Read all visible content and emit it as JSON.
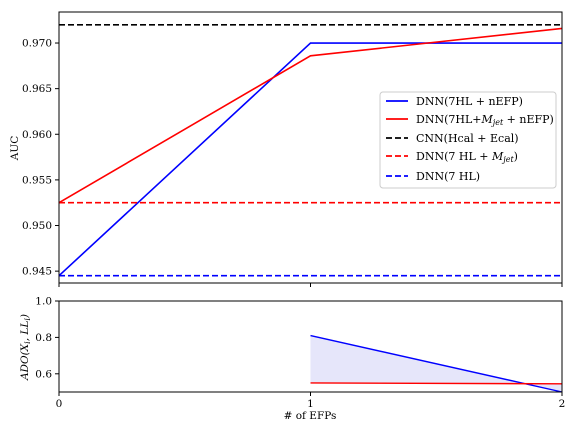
{
  "chart_data": [
    {
      "type": "line",
      "panel": "top",
      "xlabel": "",
      "ylabel": "AUC",
      "xlim": [
        0,
        2
      ],
      "ylim": [
        0.9437,
        0.9734
      ],
      "xticks": [
        0,
        1,
        2
      ],
      "yticks": [
        0.945,
        0.95,
        0.955,
        0.96,
        0.965,
        0.97
      ],
      "ytick_labels": [
        "0.945",
        "0.950",
        "0.955",
        "0.960",
        "0.965",
        "0.970"
      ],
      "grid": false,
      "legend_position": "center-right",
      "series": [
        {
          "name": "DNN(7HL + nEFP)",
          "color": "#0000ff",
          "dash": "solid",
          "x": [
            0,
            1,
            2
          ],
          "y": [
            0.9445,
            0.97,
            0.97
          ]
        },
        {
          "name": "DNN(7HL+",
          "name_math": "M",
          "name_sub": "jet",
          "name_suffix": " + nEFP)",
          "color": "#ff0000",
          "dash": "solid",
          "x": [
            0,
            1,
            2
          ],
          "y": [
            0.9525,
            0.9686,
            0.9716
          ]
        },
        {
          "name": "CNN(Hcal + Ecal)",
          "color": "#000000",
          "dash": "dashed",
          "x": [
            0,
            2
          ],
          "y": [
            0.972,
            0.972
          ]
        },
        {
          "name": "DNN(7 HL + ",
          "name_math": "M",
          "name_sub": "jet",
          "name_suffix": ")",
          "color": "#ff0000",
          "dash": "dashed",
          "x": [
            0,
            2
          ],
          "y": [
            0.9525,
            0.9525
          ]
        },
        {
          "name": "DNN(7 HL)",
          "color": "#0000ff",
          "dash": "dashed",
          "x": [
            0,
            2
          ],
          "y": [
            0.9445,
            0.9445
          ]
        }
      ]
    },
    {
      "type": "line",
      "panel": "bottom",
      "xlabel": "# of EFPs",
      "ylabel": "ADO(X_i, LL_i)",
      "xlim": [
        0,
        2
      ],
      "ylim": [
        0.5,
        1.0
      ],
      "xticks": [
        0,
        1,
        2
      ],
      "xtick_labels": [
        "0",
        "1",
        "2"
      ],
      "yticks": [
        0.6,
        0.8,
        1.0
      ],
      "ytick_labels": [
        "0.6",
        "0.8",
        "1.0"
      ],
      "grid": false,
      "fill_color": "#e6e6fa",
      "series": [
        {
          "color": "#0000ff",
          "dash": "solid",
          "x": [
            1,
            2
          ],
          "y": [
            0.81,
            0.5
          ]
        },
        {
          "color": "#ff0000",
          "dash": "solid",
          "x": [
            1,
            2
          ],
          "y": [
            0.55,
            0.545
          ]
        }
      ]
    }
  ]
}
